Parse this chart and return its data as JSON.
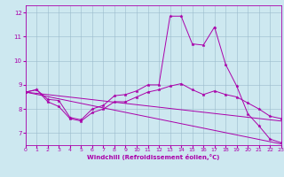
{
  "xlabel": "Windchill (Refroidissement éolien,°C)",
  "background_color": "#cde8f0",
  "line_color": "#aa00aa",
  "grid_color": "#99bbcc",
  "lines": [
    {
      "x": [
        0,
        1,
        2,
        3,
        4,
        5,
        6,
        7,
        8,
        9,
        10,
        11,
        12,
        13,
        14,
        15,
        16,
        17,
        18,
        19,
        20,
        21,
        22,
        23
      ],
      "y": [
        8.7,
        8.8,
        8.4,
        8.35,
        7.65,
        7.55,
        8.0,
        8.15,
        8.55,
        8.6,
        8.75,
        9.0,
        9.0,
        11.85,
        11.85,
        10.7,
        10.65,
        11.4,
        9.85,
        8.95,
        7.8,
        7.3,
        6.75,
        6.6
      ],
      "has_markers": true
    },
    {
      "x": [
        0,
        1,
        2,
        3,
        4,
        5,
        6,
        7,
        8,
        9,
        10,
        11,
        12,
        13,
        14,
        15,
        16,
        17,
        18,
        19,
        20,
        21,
        22,
        23
      ],
      "y": [
        8.7,
        8.8,
        8.3,
        8.1,
        7.6,
        7.5,
        7.85,
        8.0,
        8.3,
        8.3,
        8.5,
        8.7,
        8.8,
        8.95,
        9.05,
        8.8,
        8.6,
        8.75,
        8.6,
        8.5,
        8.25,
        8.0,
        7.7,
        7.6
      ],
      "has_markers": true
    },
    {
      "x": [
        0,
        23
      ],
      "y": [
        8.7,
        6.55
      ],
      "has_markers": false
    },
    {
      "x": [
        0,
        23
      ],
      "y": [
        8.7,
        7.5
      ],
      "has_markers": false
    }
  ],
  "xlim": [
    0,
    23
  ],
  "ylim": [
    6.5,
    12.3
  ],
  "xticks": [
    0,
    1,
    2,
    3,
    4,
    5,
    6,
    7,
    8,
    9,
    10,
    11,
    12,
    13,
    14,
    15,
    16,
    17,
    18,
    19,
    20,
    21,
    22,
    23
  ],
  "yticks": [
    7,
    8,
    9,
    10,
    11,
    12
  ]
}
